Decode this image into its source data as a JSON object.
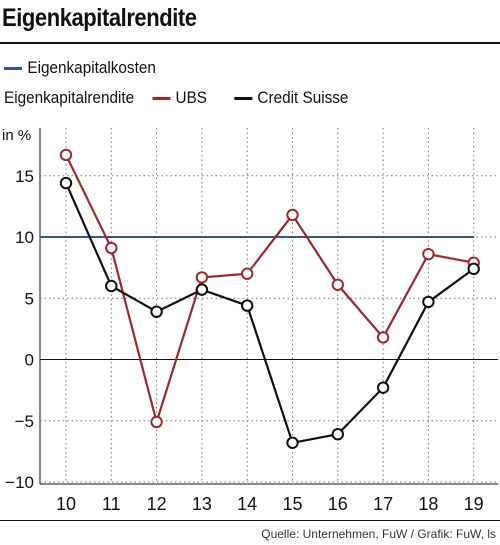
{
  "title": "Eigenkapitalrendite",
  "source": "Quelle: Unternehmen, FuW / Grafik: FuW, ls",
  "colors": {
    "cost": "#2f5597",
    "ubs": "#a0282d",
    "cs": "#111111",
    "grid": "#777777"
  },
  "chart_data": {
    "type": "line",
    "ylabel": "in %",
    "categories": [
      "10",
      "11",
      "12",
      "13",
      "14",
      "15",
      "16",
      "17",
      "18",
      "19"
    ],
    "y_ticks": [
      15,
      10,
      5,
      0,
      -5,
      -10
    ],
    "ylim": [
      -10,
      17
    ],
    "grid": true,
    "legend_position": "top-left",
    "legend_group_label": "Eigenkapitalrendite",
    "reference_line": {
      "name": "Eigenkapitalkosten",
      "value": 10
    },
    "series": [
      {
        "name": "UBS",
        "values": [
          16.7,
          9.1,
          -5.1,
          6.7,
          7.0,
          11.8,
          6.1,
          1.8,
          8.6,
          7.9
        ]
      },
      {
        "name": "Credit Suisse",
        "values": [
          14.4,
          6.0,
          3.9,
          5.7,
          4.4,
          -6.8,
          -6.1,
          -2.3,
          4.7,
          7.4
        ]
      }
    ]
  }
}
